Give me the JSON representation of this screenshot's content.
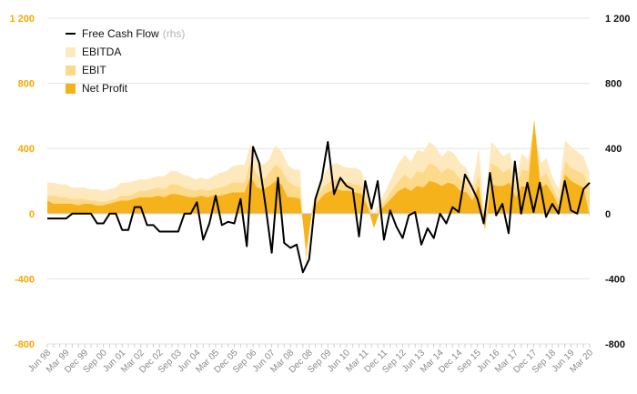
{
  "chart_data": {
    "type": "area",
    "x_labels": [
      "Jun 98",
      "Mar 99",
      "Dec 99",
      "Sep 00",
      "Jun 01",
      "Mar 02",
      "Dec 02",
      "Sep 03",
      "Jun 04",
      "Mar 05",
      "Dec 05",
      "Sep 06",
      "Jun 07",
      "Mar 08",
      "Dec 08",
      "Sep 09",
      "Jun 10",
      "Mar 11",
      "Dec 11",
      "Sep 12",
      "Jun 13",
      "Mar 14",
      "Dec 14",
      "Sep 15",
      "Jun 16",
      "Mar 17",
      "Dec 17",
      "Sep 18",
      "Jun 19",
      "Mar 20"
    ],
    "left_axis": {
      "ticks": [
        "1 200",
        "800",
        "400",
        "0",
        "-400",
        "-800"
      ],
      "ylim": [
        -800,
        1200
      ],
      "color": "#f5a800"
    },
    "right_axis": {
      "ticks": [
        "1 200",
        "800",
        "400",
        "0",
        "-400",
        "-800"
      ],
      "ylim": [
        -800,
        1200
      ],
      "color": "#111111"
    },
    "grid": true,
    "legend_position": "top-left",
    "series": [
      {
        "name": "Free Cash Flow",
        "name_note": "(rhs)",
        "kind": "line",
        "axis": "right",
        "color": "#000000",
        "values": [
          -30,
          -30,
          -30,
          -30,
          0,
          0,
          0,
          0,
          -60,
          -60,
          0,
          0,
          -100,
          -100,
          40,
          40,
          -70,
          -70,
          -110,
          -110,
          -110,
          -110,
          0,
          0,
          70,
          -160,
          -60,
          110,
          -70,
          -50,
          -60,
          90,
          -200,
          410,
          310,
          50,
          -240,
          220,
          -180,
          -210,
          -190,
          -360,
          -280,
          90,
          210,
          440,
          120,
          220,
          170,
          150,
          -140,
          200,
          30,
          200,
          -160,
          20,
          -80,
          -150,
          -10,
          10,
          -190,
          -90,
          -150,
          0,
          -60,
          40,
          10,
          240,
          170,
          90,
          -60,
          250,
          -10,
          60,
          -120,
          320,
          0,
          190,
          10,
          190,
          -20,
          60,
          0,
          200,
          20,
          0,
          150,
          190
        ]
      },
      {
        "name": "EBITDA",
        "kind": "area",
        "axis": "left",
        "color": "#fde9bd",
        "values": [
          190,
          190,
          180,
          180,
          160,
          160,
          160,
          150,
          150,
          140,
          150,
          160,
          190,
          190,
          200,
          210,
          210,
          220,
          230,
          230,
          260,
          260,
          240,
          230,
          210,
          220,
          210,
          230,
          250,
          260,
          290,
          300,
          300,
          430,
          320,
          300,
          330,
          420,
          380,
          300,
          270,
          270,
          -320,
          60,
          170,
          250,
          300,
          310,
          290,
          280,
          280,
          260,
          110,
          0,
          80,
          150,
          230,
          310,
          360,
          320,
          390,
          380,
          440,
          410,
          350,
          390,
          370,
          310,
          280,
          180,
          400,
          -20,
          440,
          400,
          350,
          380,
          210,
          370,
          330,
          550,
          310,
          340,
          220,
          150,
          450,
          410,
          380,
          350,
          250
        ]
      },
      {
        "name": "EBIT",
        "kind": "area",
        "axis": "left",
        "color": "#fdd98a",
        "values": [
          110,
          110,
          100,
          100,
          90,
          90,
          90,
          80,
          80,
          70,
          80,
          90,
          110,
          110,
          120,
          140,
          140,
          150,
          160,
          150,
          180,
          180,
          160,
          150,
          140,
          150,
          140,
          150,
          160,
          170,
          190,
          190,
          190,
          320,
          240,
          210,
          250,
          300,
          270,
          200,
          170,
          160,
          -280,
          40,
          120,
          170,
          200,
          210,
          200,
          190,
          180,
          170,
          60,
          -60,
          40,
          90,
          150,
          200,
          240,
          210,
          260,
          250,
          310,
          290,
          250,
          280,
          260,
          210,
          190,
          110,
          240,
          -80,
          310,
          290,
          250,
          280,
          150,
          270,
          260,
          560,
          220,
          250,
          160,
          80,
          320,
          280,
          260,
          240,
          160
        ]
      },
      {
        "name": "Net Profit",
        "kind": "area",
        "axis": "left",
        "color": "#f5b21a",
        "values": [
          80,
          60,
          60,
          60,
          60,
          50,
          60,
          60,
          50,
          50,
          60,
          70,
          80,
          80,
          90,
          100,
          100,
          100,
          110,
          100,
          120,
          120,
          110,
          100,
          100,
          110,
          100,
          110,
          110,
          120,
          130,
          130,
          130,
          230,
          160,
          150,
          170,
          200,
          180,
          100,
          100,
          90,
          -220,
          20,
          80,
          120,
          140,
          150,
          140,
          140,
          130,
          120,
          40,
          -90,
          20,
          60,
          100,
          140,
          160,
          140,
          170,
          160,
          200,
          190,
          170,
          190,
          180,
          140,
          130,
          80,
          170,
          -100,
          180,
          170,
          170,
          190,
          100,
          170,
          160,
          580,
          160,
          180,
          120,
          40,
          240,
          200,
          180,
          160,
          -20
        ]
      }
    ]
  }
}
